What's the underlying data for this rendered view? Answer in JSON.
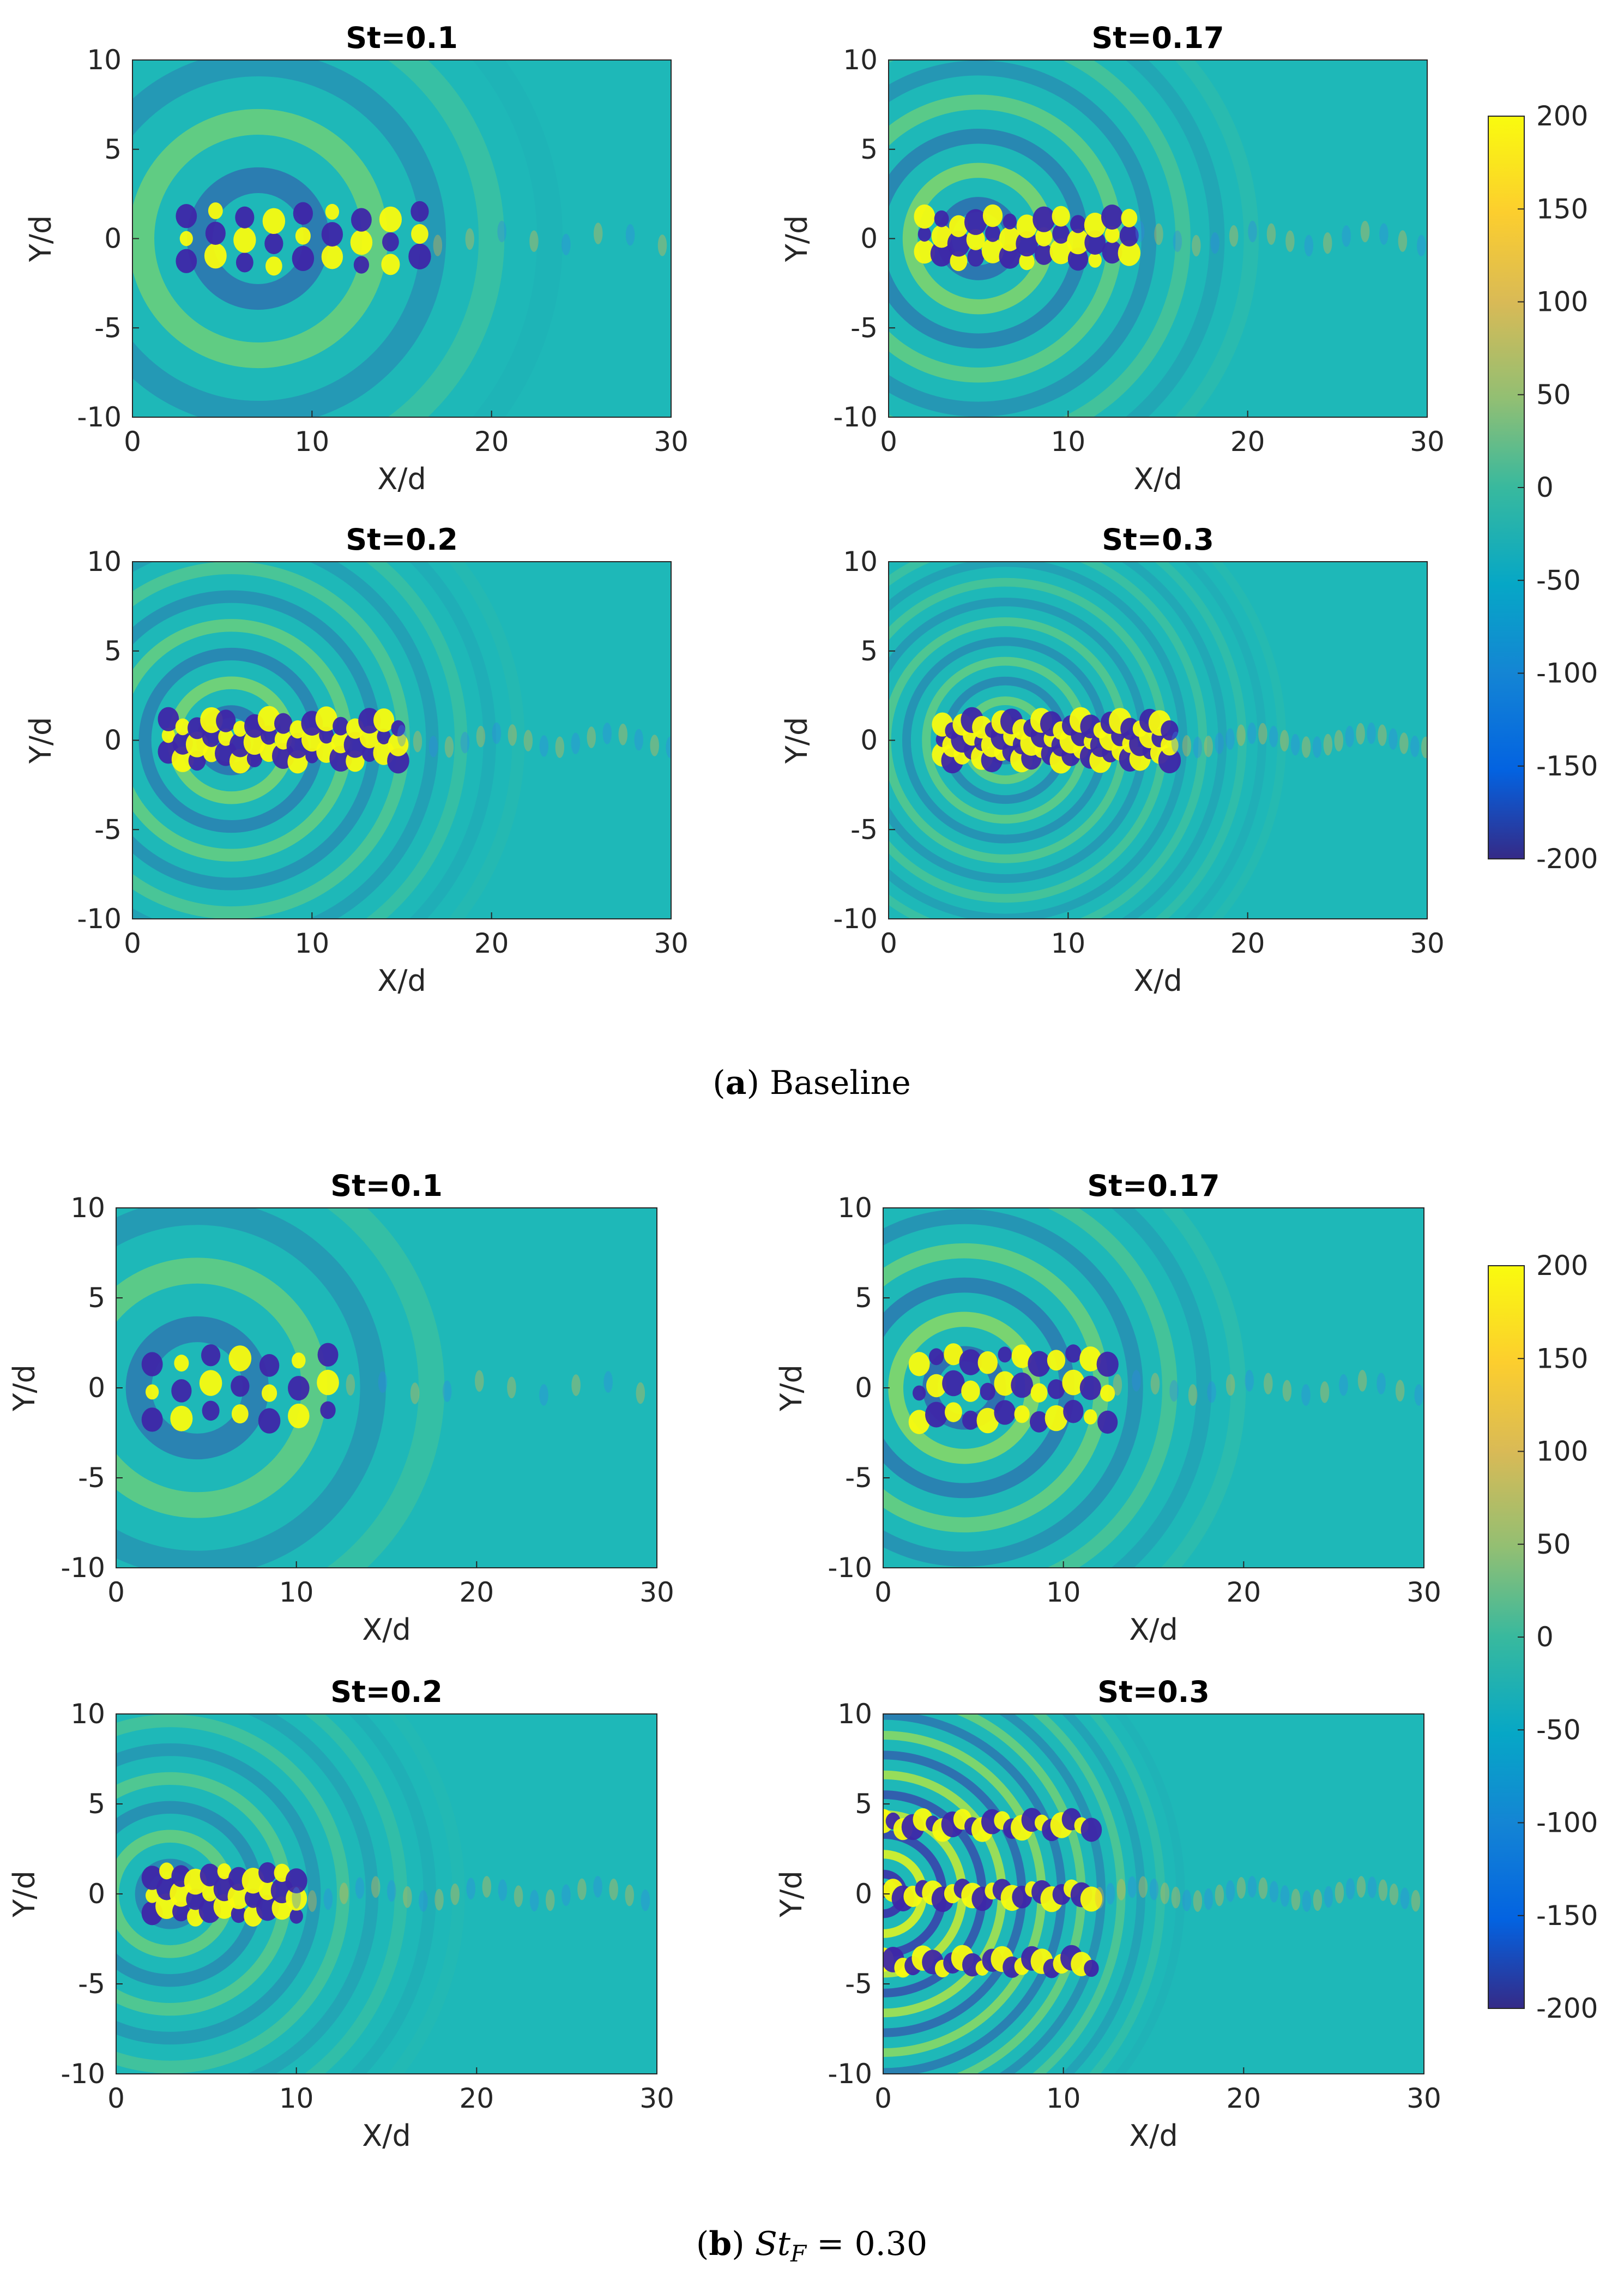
{
  "figure": {
    "caption_a_label": "a",
    "caption_a_text": "Baseline",
    "caption_b_label": "b",
    "caption_b_text_main": "St",
    "caption_b_text_sub": "F",
    "caption_b_text_rest": " = 0.30"
  },
  "colors": {
    "background_field": "#1eb8b8",
    "positive_max": "#f9fb0e",
    "positive_mid": "#f2b83a",
    "negative_max": "#3e26a8",
    "negative_mid": "#3584e6",
    "axis": "#262626"
  },
  "chart_data": [
    {
      "type": "heatmap",
      "panel": "a1",
      "group": "Baseline",
      "title": "St=0.1",
      "xlabel": "X/d",
      "ylabel": "Y/d",
      "xlim": [
        0,
        30
      ],
      "ylim": [
        -10,
        10
      ],
      "xticks": [
        "0",
        "10",
        "20",
        "30"
      ],
      "yticks": [
        "10",
        "5",
        "0",
        "-5",
        "-10"
      ],
      "wave": {
        "wavelength": 6.5,
        "amplitude": 0.55,
        "core_x": [
          3,
          17
        ],
        "core_width": 1.8
      }
    },
    {
      "type": "heatmap",
      "panel": "a2",
      "group": "Baseline",
      "title": "St=0.17",
      "xlabel": "X/d",
      "ylabel": "Y/d",
      "xlim": [
        0,
        30
      ],
      "ylim": [
        -10,
        10
      ],
      "xticks": [
        "0",
        "10",
        "20",
        "30"
      ],
      "yticks": [
        "10",
        "5",
        "0",
        "-5",
        "-10"
      ],
      "wave": {
        "wavelength": 3.8,
        "amplitude": 0.55,
        "core_x": [
          2,
          14
        ],
        "core_width": 1.4
      }
    },
    {
      "type": "heatmap",
      "panel": "a3",
      "group": "Baseline",
      "title": "St=0.2",
      "xlabel": "X/d",
      "ylabel": "Y/d",
      "xlim": [
        0,
        30
      ],
      "ylim": [
        -10,
        10
      ],
      "xticks": [
        "0",
        "10",
        "20",
        "30"
      ],
      "yticks": [
        "10",
        "5",
        "0",
        "-5",
        "-10"
      ],
      "wave": {
        "wavelength": 3.2,
        "amplitude": 0.5,
        "core_x": [
          2,
          15
        ],
        "core_width": 1.3
      }
    },
    {
      "type": "heatmap",
      "panel": "a4",
      "group": "Baseline",
      "title": "St=0.3",
      "xlabel": "X/d",
      "ylabel": "Y/d",
      "xlim": [
        0,
        30
      ],
      "ylim": [
        -10,
        10
      ],
      "xticks": [
        "0",
        "10",
        "20",
        "30"
      ],
      "yticks": [
        "10",
        "5",
        "0",
        "-5",
        "-10"
      ],
      "wave": {
        "wavelength": 2.2,
        "amplitude": 0.4,
        "core_x": [
          3,
          16
        ],
        "core_width": 1.2
      }
    },
    {
      "type": "heatmap",
      "panel": "b1",
      "group": "St_F = 0.30",
      "title": "St=0.1",
      "xlabel": "X/d",
      "ylabel": "Y/d",
      "xlim": [
        0,
        30
      ],
      "ylim": [
        -10,
        10
      ],
      "xticks": [
        "0",
        "10",
        "20",
        "30"
      ],
      "yticks": [
        "10",
        "5",
        "0",
        "-5",
        "-10"
      ],
      "wave": {
        "wavelength": 6.5,
        "amplitude": 0.5,
        "core_x": [
          2,
          13
        ],
        "core_width": 2.2
      }
    },
    {
      "type": "heatmap",
      "panel": "b2",
      "group": "St_F = 0.30",
      "title": "St=0.17",
      "xlabel": "X/d",
      "ylabel": "Y/d",
      "xlim": [
        0,
        30
      ],
      "ylim": [
        -10,
        10
      ],
      "xticks": [
        "0",
        "10",
        "20",
        "30"
      ],
      "yticks": [
        "10",
        "5",
        "0",
        "-5",
        "-10"
      ],
      "wave": {
        "wavelength": 3.8,
        "amplitude": 0.6,
        "core_x": [
          2,
          13
        ],
        "core_width": 2.3
      }
    },
    {
      "type": "heatmap",
      "panel": "b3",
      "group": "St_F = 0.30",
      "title": "St=0.2",
      "xlabel": "X/d",
      "ylabel": "Y/d",
      "xlim": [
        0,
        30
      ],
      "ylim": [
        -10,
        10
      ],
      "xticks": [
        "0",
        "10",
        "20",
        "30"
      ],
      "yticks": [
        "10",
        "5",
        "0",
        "-5",
        "-10"
      ],
      "wave": {
        "wavelength": 3.2,
        "amplitude": 0.4,
        "core_x": [
          2,
          10
        ],
        "core_width": 1.4
      }
    },
    {
      "type": "heatmap",
      "panel": "b4",
      "group": "St_F = 0.30",
      "title": "St=0.3",
      "xlabel": "X/d",
      "ylabel": "Y/d",
      "xlim": [
        0,
        30
      ],
      "ylim": [
        -10,
        10
      ],
      "xticks": [
        "0",
        "10",
        "20",
        "30"
      ],
      "yticks": [
        "10",
        "5",
        "0",
        "-5",
        "-10"
      ],
      "wave": {
        "wavelength": 2.2,
        "amplitude": 1.0,
        "core_x": [
          0,
          12
        ],
        "core_width": 5.5
      }
    }
  ],
  "colorbars": [
    {
      "group": "Baseline",
      "range": [
        -200,
        200
      ],
      "ticks": [
        "200",
        "150",
        "100",
        "50",
        "0",
        "-50",
        "-100",
        "-150",
        "-200"
      ]
    },
    {
      "group": "St_F = 0.30",
      "range": [
        -200,
        200
      ],
      "ticks": [
        "200",
        "150",
        "100",
        "50",
        "0",
        "-50",
        "-100",
        "-150",
        "-200"
      ]
    }
  ]
}
